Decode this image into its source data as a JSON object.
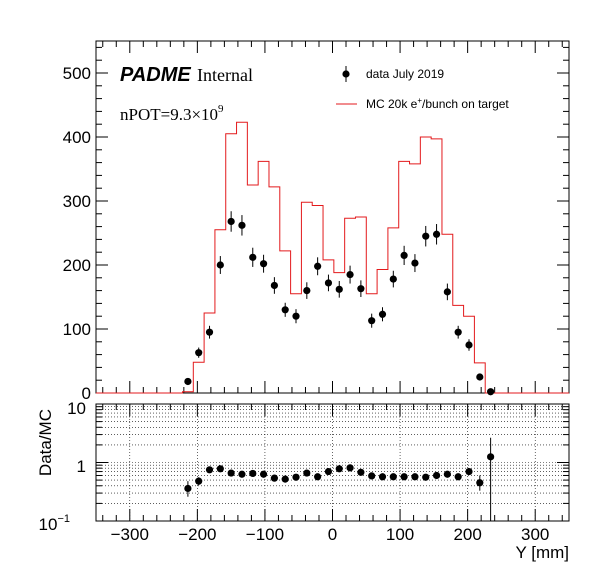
{
  "chart_data": [
    {
      "type": "histogram",
      "panel": "main",
      "xlim": [
        -350,
        350
      ],
      "ylim": [
        0,
        550
      ],
      "yticks": [
        0,
        100,
        200,
        300,
        400,
        500
      ],
      "ytick_labels": [
        "0",
        "100",
        "200",
        "300",
        "400",
        "500"
      ],
      "brand_text": "PADME",
      "brand_suffix": "Internal",
      "npot_text": "nPOT=9.3×10",
      "npot_exp": "9",
      "legend": {
        "placement": "top-right",
        "data_label": "data July 2019",
        "mc_label_pre": "MC 20k e",
        "mc_label_sup": "+",
        "mc_label_post": "/bunch on target"
      },
      "colors": {
        "mc": "#e31a1c",
        "data": "#000000",
        "axis": "#000000"
      },
      "series": [
        {
          "name": "MC 20k e+/bunch on target",
          "kind": "step",
          "bin_edges": [
            -350,
            -334,
            -318,
            -302,
            -286,
            -270,
            -254,
            -238,
            -222,
            -206,
            -190,
            -174,
            -158,
            -142,
            -126,
            -110,
            -94,
            -78,
            -62,
            -46,
            -30,
            -14,
            2,
            18,
            34,
            50,
            66,
            82,
            98,
            114,
            130,
            146,
            162,
            178,
            194,
            210,
            226,
            242,
            258,
            274,
            290,
            306,
            322,
            338,
            350
          ],
          "values": [
            0,
            0,
            0,
            0,
            0,
            0,
            0,
            0,
            2,
            48,
            125,
            255,
            405,
            423,
            325,
            362,
            322,
            222,
            155,
            298,
            293,
            208,
            188,
            273,
            275,
            155,
            193,
            258,
            362,
            358,
            400,
            397,
            248,
            137,
            120,
            47,
            0,
            0,
            0,
            0,
            0,
            0,
            0,
            0
          ]
        },
        {
          "name": "data July 2019",
          "kind": "points",
          "x": [
            -214,
            -198,
            -182,
            -166,
            -150,
            -134,
            -118,
            -102,
            -86,
            -70,
            -54,
            -38,
            -22,
            -6,
            10,
            26,
            42,
            58,
            74,
            90,
            106,
            122,
            138,
            154,
            170,
            186,
            202,
            218,
            234
          ],
          "y": [
            18,
            63,
            95,
            200,
            268,
            262,
            212,
            202,
            168,
            130,
            120,
            160,
            198,
            172,
            162,
            185,
            163,
            113,
            123,
            178,
            215,
            203,
            245,
            248,
            158,
            95,
            75,
            25,
            2
          ],
          "yerr": [
            5,
            8,
            10,
            14,
            16,
            16,
            15,
            14,
            13,
            11,
            11,
            13,
            14,
            13,
            13,
            14,
            13,
            11,
            11,
            13,
            15,
            14,
            16,
            16,
            13,
            10,
            9,
            5,
            2
          ]
        }
      ]
    },
    {
      "type": "scatter",
      "panel": "ratio",
      "yscale": "log",
      "ylim": [
        0.1,
        10
      ],
      "ylabel": "Data/MC",
      "xlabel": "Y [mm]",
      "xlim": [
        -350,
        350
      ],
      "xticks": [
        -300,
        -200,
        -100,
        0,
        100,
        200,
        300
      ],
      "xtick_labels": [
        "−300",
        "−200",
        "−100",
        "0",
        "100",
        "200",
        "300"
      ],
      "ytick_labels": {
        "top": "10",
        "mid": "1",
        "bottom_base": "10",
        "bottom_exp": "−1"
      },
      "grid": true,
      "series": [
        {
          "name": "Data/MC",
          "x": [
            -214,
            -198,
            -182,
            -166,
            -150,
            -134,
            -118,
            -102,
            -86,
            -70,
            -54,
            -38,
            -22,
            -6,
            10,
            26,
            42,
            58,
            74,
            90,
            106,
            122,
            138,
            154,
            170,
            186,
            202,
            218,
            234
          ],
          "y": [
            0.36,
            0.48,
            0.75,
            0.78,
            0.66,
            0.63,
            0.65,
            0.63,
            0.54,
            0.52,
            0.56,
            0.66,
            0.57,
            0.7,
            0.78,
            0.81,
            0.68,
            0.59,
            0.57,
            0.57,
            0.57,
            0.57,
            0.56,
            0.6,
            0.63,
            0.57,
            0.7,
            0.45,
            1.25
          ],
          "yerr_up": [
            0.12,
            0.08,
            0.08,
            0.06,
            0.05,
            0.05,
            0.05,
            0.05,
            0.05,
            0.05,
            0.05,
            0.05,
            0.05,
            0.05,
            0.05,
            0.05,
            0.05,
            0.05,
            0.05,
            0.05,
            0.05,
            0.05,
            0.05,
            0.05,
            0.05,
            0.05,
            0.08,
            0.15,
            1.4
          ],
          "yerr_down": [
            0.1,
            0.07,
            0.07,
            0.06,
            0.05,
            0.05,
            0.05,
            0.05,
            0.05,
            0.05,
            0.05,
            0.05,
            0.05,
            0.05,
            0.05,
            0.05,
            0.05,
            0.05,
            0.05,
            0.05,
            0.05,
            0.05,
            0.05,
            0.05,
            0.05,
            0.05,
            0.07,
            0.12,
            1.15
          ]
        }
      ]
    }
  ]
}
